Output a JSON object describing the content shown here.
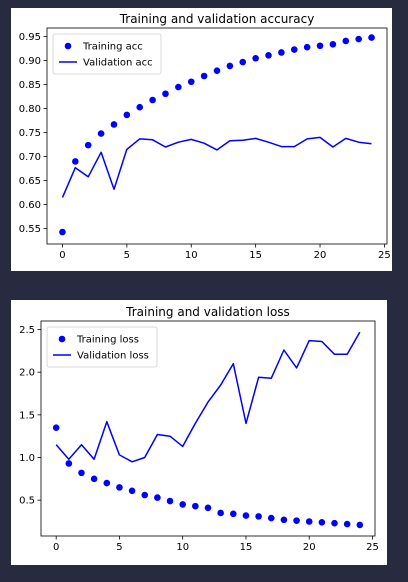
{
  "chart_data": [
    {
      "type": "line",
      "title": "Training and validation accuracy",
      "xlabel": "",
      "ylabel": "",
      "xlim": [
        -1.2,
        25.2
      ],
      "ylim": [
        0.518,
        0.968
      ],
      "xticks": [
        0,
        5,
        10,
        15,
        20,
        25
      ],
      "xtick_labels": [
        "0",
        "5",
        "10",
        "15",
        "20",
        "25"
      ],
      "yticks": [
        0.55,
        0.6,
        0.65,
        0.7,
        0.75,
        0.8,
        0.85,
        0.9,
        0.95
      ],
      "ytick_labels": [
        "0.55",
        "0.60",
        "0.65",
        "0.70",
        "0.75",
        "0.80",
        "0.85",
        "0.90",
        "0.95"
      ],
      "legend_position": "upper left",
      "grid": false,
      "x": [
        0,
        1,
        2,
        3,
        4,
        5,
        6,
        7,
        8,
        9,
        10,
        11,
        12,
        13,
        14,
        15,
        16,
        17,
        18,
        19,
        20,
        21,
        22,
        23,
        24
      ],
      "series": [
        {
          "name": "Training acc",
          "style": "markers",
          "color": "#0000ff",
          "values": [
            0.543,
            0.69,
            0.724,
            0.748,
            0.767,
            0.787,
            0.803,
            0.818,
            0.831,
            0.845,
            0.856,
            0.868,
            0.879,
            0.889,
            0.897,
            0.905,
            0.911,
            0.917,
            0.923,
            0.928,
            0.931,
            0.934,
            0.941,
            0.945,
            0.948
          ]
        },
        {
          "name": "Validation acc",
          "style": "line",
          "color": "#0000ff",
          "values": [
            0.615,
            0.677,
            0.658,
            0.709,
            0.632,
            0.715,
            0.737,
            0.735,
            0.72,
            0.73,
            0.736,
            0.728,
            0.714,
            0.733,
            0.734,
            0.738,
            0.73,
            0.721,
            0.721,
            0.737,
            0.74,
            0.72,
            0.738,
            0.73,
            0.727
          ]
        }
      ]
    },
    {
      "type": "line",
      "title": "Training and validation loss",
      "xlabel": "",
      "ylabel": "",
      "xlim": [
        -1.2,
        25.2
      ],
      "ylim": [
        0.08,
        2.6
      ],
      "xticks": [
        0,
        5,
        10,
        15,
        20,
        25
      ],
      "xtick_labels": [
        "0",
        "5",
        "10",
        "15",
        "20",
        "25"
      ],
      "yticks": [
        0.5,
        1.0,
        1.5,
        2.0,
        2.5
      ],
      "ytick_labels": [
        "0.5",
        "1.0",
        "1.5",
        "2.0",
        "2.5"
      ],
      "legend_position": "upper left",
      "grid": false,
      "x": [
        0,
        1,
        2,
        3,
        4,
        5,
        6,
        7,
        8,
        9,
        10,
        11,
        12,
        13,
        14,
        15,
        16,
        17,
        18,
        19,
        20,
        21,
        22,
        23,
        24
      ],
      "series": [
        {
          "name": "Training loss",
          "style": "markers",
          "color": "#0000ff",
          "values": [
            1.35,
            0.93,
            0.82,
            0.75,
            0.7,
            0.65,
            0.61,
            0.56,
            0.53,
            0.49,
            0.45,
            0.43,
            0.41,
            0.35,
            0.34,
            0.32,
            0.31,
            0.29,
            0.27,
            0.26,
            0.25,
            0.24,
            0.23,
            0.22,
            0.21
          ]
        },
        {
          "name": "Validation loss",
          "style": "line",
          "color": "#0000ff",
          "values": [
            1.15,
            0.98,
            1.15,
            0.98,
            1.42,
            1.03,
            0.95,
            1.0,
            1.27,
            1.25,
            1.13,
            1.4,
            1.65,
            1.85,
            2.1,
            1.4,
            1.94,
            1.93,
            2.26,
            2.05,
            2.37,
            2.36,
            2.21,
            2.21,
            2.47
          ]
        }
      ]
    }
  ]
}
